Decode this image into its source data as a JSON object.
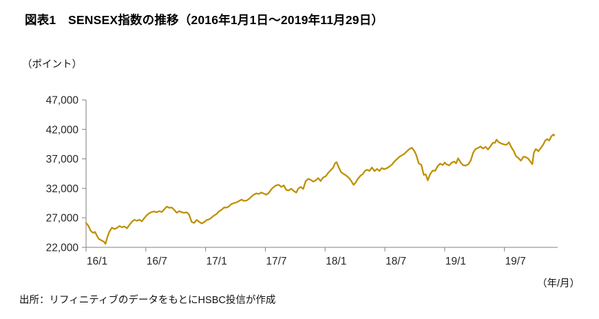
{
  "page": {
    "source": "出所：リフィニティブのデータをもとにHSBC投信が作成"
  },
  "chart_data": {
    "type": "line",
    "title": "図表1　SENSEX指数の推移（2016年1月1日～2019年11月29日）",
    "unit_label": "（ポイント）",
    "xlabel": "（年/月）",
    "ylabel": "",
    "grid": false,
    "legend": "none",
    "line_color": "#BF9000",
    "axis_color": "#7f7f7f",
    "label_color": "#262626",
    "ylim": [
      22000,
      47000
    ],
    "xlim_months": [
      0,
      47
    ],
    "y_tick_values": [
      22000,
      27000,
      32000,
      37000,
      42000,
      47000
    ],
    "y_tick_labels": [
      "22,000",
      "27,000",
      "32,000",
      "37,000",
      "42,000",
      "47,000"
    ],
    "x_tick_months": [
      0,
      6,
      12,
      18,
      24,
      30,
      36,
      42
    ],
    "x_tick_labels": [
      "16/1",
      "16/7",
      "17/1",
      "17/7",
      "18/1",
      "18/7",
      "19/1",
      "19/7"
    ],
    "series": [
      {
        "name": "SENSEX",
        "x_unit": "months since 2016/1",
        "points": [
          [
            0,
            26160
          ],
          [
            0.25,
            25600
          ],
          [
            0.45,
            24850
          ],
          [
            0.7,
            24450
          ],
          [
            0.9,
            24620
          ],
          [
            1.1,
            23950
          ],
          [
            1.3,
            23400
          ],
          [
            1.55,
            23180
          ],
          [
            1.8,
            22950
          ],
          [
            1.95,
            22600
          ],
          [
            2.15,
            23800
          ],
          [
            2.35,
            24680
          ],
          [
            2.6,
            25340
          ],
          [
            2.85,
            25100
          ],
          [
            3.1,
            25300
          ],
          [
            3.35,
            25620
          ],
          [
            3.6,
            25400
          ],
          [
            3.85,
            25550
          ],
          [
            4.1,
            25230
          ],
          [
            4.35,
            25800
          ],
          [
            4.6,
            26350
          ],
          [
            4.85,
            26670
          ],
          [
            5.1,
            26500
          ],
          [
            5.35,
            26700
          ],
          [
            5.6,
            26400
          ],
          [
            5.85,
            26950
          ],
          [
            6.1,
            27450
          ],
          [
            6.35,
            27800
          ],
          [
            6.6,
            28000
          ],
          [
            6.85,
            28080
          ],
          [
            7.1,
            27950
          ],
          [
            7.35,
            28150
          ],
          [
            7.6,
            27990
          ],
          [
            7.85,
            28450
          ],
          [
            8.1,
            28900
          ],
          [
            8.35,
            28700
          ],
          [
            8.6,
            28750
          ],
          [
            8.85,
            28350
          ],
          [
            9.1,
            27870
          ],
          [
            9.35,
            28150
          ],
          [
            9.6,
            27950
          ],
          [
            9.85,
            27850
          ],
          [
            10.1,
            27950
          ],
          [
            10.35,
            27550
          ],
          [
            10.6,
            26300
          ],
          [
            10.85,
            26150
          ],
          [
            11.1,
            26650
          ],
          [
            11.35,
            26350
          ],
          [
            11.6,
            26050
          ],
          [
            11.85,
            26250
          ],
          [
            12.1,
            26625
          ],
          [
            12.35,
            26760
          ],
          [
            12.6,
            27050
          ],
          [
            12.85,
            27400
          ],
          [
            13.1,
            27655
          ],
          [
            13.35,
            28100
          ],
          [
            13.6,
            28350
          ],
          [
            13.85,
            28750
          ],
          [
            14.1,
            28740
          ],
          [
            14.35,
            28950
          ],
          [
            14.6,
            29350
          ],
          [
            14.85,
            29500
          ],
          [
            15.1,
            29620
          ],
          [
            15.35,
            29850
          ],
          [
            15.6,
            30100
          ],
          [
            15.85,
            29900
          ],
          [
            16.1,
            29920
          ],
          [
            16.35,
            30200
          ],
          [
            16.6,
            30600
          ],
          [
            16.85,
            30950
          ],
          [
            17.1,
            31145
          ],
          [
            17.35,
            31050
          ],
          [
            17.6,
            31300
          ],
          [
            17.85,
            31100
          ],
          [
            18.1,
            30920
          ],
          [
            18.35,
            31250
          ],
          [
            18.6,
            31850
          ],
          [
            18.85,
            32250
          ],
          [
            19.1,
            32515
          ],
          [
            19.35,
            32600
          ],
          [
            19.6,
            32250
          ],
          [
            19.85,
            32500
          ],
          [
            20.1,
            31730
          ],
          [
            20.35,
            31650
          ],
          [
            20.6,
            31950
          ],
          [
            20.85,
            31550
          ],
          [
            21.1,
            31285
          ],
          [
            21.3,
            31950
          ],
          [
            21.55,
            32250
          ],
          [
            21.8,
            31900
          ],
          [
            22.05,
            33215
          ],
          [
            22.3,
            33600
          ],
          [
            22.55,
            33450
          ],
          [
            22.8,
            33150
          ],
          [
            23.05,
            33350
          ],
          [
            23.3,
            33750
          ],
          [
            23.55,
            33250
          ],
          [
            23.8,
            33850
          ],
          [
            24.05,
            34055
          ],
          [
            24.3,
            34600
          ],
          [
            24.55,
            35080
          ],
          [
            24.8,
            35510
          ],
          [
            25,
            36285
          ],
          [
            25.15,
            36445
          ],
          [
            25.35,
            35600
          ],
          [
            25.6,
            34757
          ],
          [
            25.85,
            34450
          ],
          [
            26.1,
            34185
          ],
          [
            26.35,
            33850
          ],
          [
            26.6,
            33300
          ],
          [
            26.85,
            32600
          ],
          [
            27.05,
            32970
          ],
          [
            27.3,
            33630
          ],
          [
            27.55,
            34150
          ],
          [
            27.8,
            34450
          ],
          [
            28,
            34970
          ],
          [
            28.2,
            35160
          ],
          [
            28.45,
            34950
          ],
          [
            28.7,
            35540
          ],
          [
            28.95,
            34925
          ],
          [
            29.2,
            35300
          ],
          [
            29.45,
            34950
          ],
          [
            29.7,
            35450
          ],
          [
            29.95,
            35250
          ],
          [
            30.2,
            35425
          ],
          [
            30.45,
            35700
          ],
          [
            30.7,
            36020
          ],
          [
            30.95,
            36550
          ],
          [
            31.2,
            36950
          ],
          [
            31.45,
            37335
          ],
          [
            31.7,
            37600
          ],
          [
            31.95,
            37870
          ],
          [
            32.2,
            38280
          ],
          [
            32.45,
            38645
          ],
          [
            32.7,
            38900
          ],
          [
            32.95,
            38350
          ],
          [
            33.15,
            37650
          ],
          [
            33.4,
            36230
          ],
          [
            33.65,
            35990
          ],
          [
            33.9,
            34300
          ],
          [
            34.1,
            34377
          ],
          [
            34.3,
            33350
          ],
          [
            34.55,
            34450
          ],
          [
            34.8,
            35010
          ],
          [
            35.05,
            34990
          ],
          [
            35.3,
            35775
          ],
          [
            35.55,
            36195
          ],
          [
            35.8,
            35950
          ],
          [
            36,
            36370
          ],
          [
            36.2,
            36068
          ],
          [
            36.45,
            35890
          ],
          [
            36.7,
            36350
          ],
          [
            36.95,
            36550
          ],
          [
            37.15,
            36255
          ],
          [
            37.35,
            37100
          ],
          [
            37.6,
            36400
          ],
          [
            37.85,
            35925
          ],
          [
            38.1,
            35870
          ],
          [
            38.35,
            36050
          ],
          [
            38.6,
            36650
          ],
          [
            38.85,
            38000
          ],
          [
            39.1,
            38670
          ],
          [
            39.35,
            38850
          ],
          [
            39.6,
            39100
          ],
          [
            39.85,
            38750
          ],
          [
            40.1,
            39030
          ],
          [
            40.35,
            38600
          ],
          [
            40.6,
            39150
          ],
          [
            40.85,
            39750
          ],
          [
            41.05,
            39715
          ],
          [
            41.2,
            40265
          ],
          [
            41.45,
            39800
          ],
          [
            41.7,
            39600
          ],
          [
            41.95,
            39450
          ],
          [
            42.2,
            39395
          ],
          [
            42.45,
            39800
          ],
          [
            42.7,
            38950
          ],
          [
            42.95,
            38300
          ],
          [
            43.15,
            37480
          ],
          [
            43.4,
            37150
          ],
          [
            43.65,
            36700
          ],
          [
            43.9,
            37350
          ],
          [
            44.1,
            37335
          ],
          [
            44.35,
            37100
          ],
          [
            44.6,
            36560
          ],
          [
            44.8,
            36095
          ],
          [
            44.95,
            38015
          ],
          [
            45.15,
            38670
          ],
          [
            45.4,
            38300
          ],
          [
            45.65,
            38850
          ],
          [
            45.9,
            39440
          ],
          [
            46.1,
            40130
          ],
          [
            46.3,
            40350
          ],
          [
            46.5,
            40115
          ],
          [
            46.7,
            40800
          ],
          [
            46.9,
            41130
          ],
          [
            47,
            40980
          ]
        ]
      }
    ]
  }
}
